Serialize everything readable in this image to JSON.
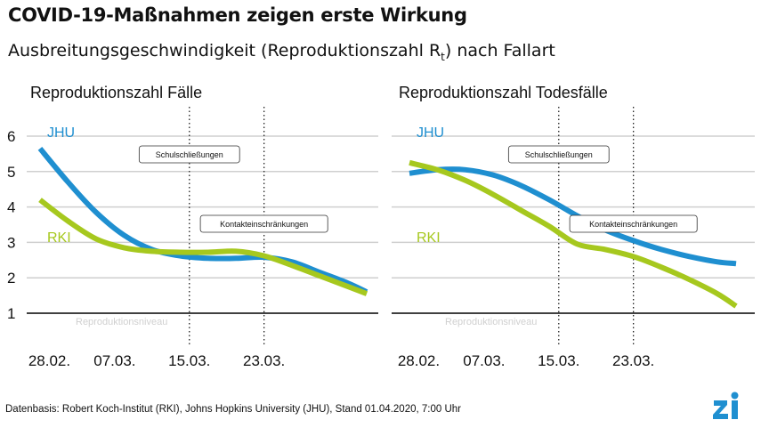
{
  "header": {
    "title": "COVID-19-Maßnahmen zeigen erste Wirkung",
    "subtitle_main": "Ausbreitungsgeschwindigkeit (Reproduktionszahl R",
    "subtitle_sub": "t",
    "subtitle_end": ") nach Fallart"
  },
  "footer": {
    "source": "Datenbasis: Robert Koch-Institut (RKI), Johns Hopkins University (JHU), Stand 01.04.2020, 7:00 Uhr"
  },
  "logo": {
    "text": "Zi",
    "color": "#1f8fd0"
  },
  "colors": {
    "JHU": "#1f8fd0",
    "RKI": "#a6c81e",
    "grid": "#cfcfcf",
    "baseline": "#000000"
  },
  "chart_data": [
    {
      "type": "line",
      "title": "Reproduktionszahl Fälle",
      "yticks": [
        "1",
        "2",
        "3",
        "4",
        "5",
        "6"
      ],
      "ylim": [
        1,
        6
      ],
      "xlim": [
        0,
        35
      ],
      "xtick_values": [
        1,
        8,
        16,
        24
      ],
      "xtick_labels": [
        "28.02.",
        "07.03.",
        "15.03.",
        "23.03."
      ],
      "baseline_label": "Reproduktionsniveau",
      "events": [
        {
          "x": 16,
          "label": "Schulschließungen"
        },
        {
          "x": 24,
          "label": "Kontakteinschränkungen"
        }
      ],
      "series": [
        {
          "name": "JHU",
          "x": [
            0,
            3,
            6,
            9,
            12,
            15,
            18,
            21,
            24,
            27,
            30,
            33,
            35
          ],
          "y": [
            5.65,
            4.7,
            3.85,
            3.2,
            2.8,
            2.62,
            2.55,
            2.55,
            2.58,
            2.45,
            2.15,
            1.85,
            1.6
          ]
        },
        {
          "name": "RKI",
          "x": [
            0,
            3,
            6,
            9,
            12,
            15,
            18,
            21,
            24,
            27,
            30,
            33,
            35
          ],
          "y": [
            4.2,
            3.6,
            3.1,
            2.85,
            2.75,
            2.72,
            2.72,
            2.75,
            2.62,
            2.35,
            2.05,
            1.75,
            1.55
          ]
        }
      ]
    },
    {
      "type": "line",
      "title": "Reproduktionszahl Todesfälle",
      "yticks": [],
      "ylim": [
        1,
        6
      ],
      "xlim": [
        0,
        35
      ],
      "xtick_values": [
        1,
        8,
        16,
        24
      ],
      "xtick_labels": [
        "28.02.",
        "07.03.",
        "15.03.",
        "23.03."
      ],
      "baseline_label": "Reproduktionsniveau",
      "events": [
        {
          "x": 16,
          "label": "Schulschließungen"
        },
        {
          "x": 24,
          "label": "Kontakteinschränkungen"
        }
      ],
      "series": [
        {
          "name": "JHU",
          "x": [
            0,
            3,
            6,
            9,
            12,
            15,
            18,
            21,
            24,
            27,
            30,
            33,
            35
          ],
          "y": [
            4.95,
            5.05,
            5.05,
            4.9,
            4.6,
            4.2,
            3.75,
            3.35,
            3.05,
            2.8,
            2.6,
            2.45,
            2.4
          ]
        },
        {
          "name": "RKI",
          "x": [
            0,
            3,
            6,
            9,
            12,
            15,
            18,
            21,
            24,
            27,
            30,
            33,
            35
          ],
          "y": [
            5.25,
            5.05,
            4.75,
            4.35,
            3.9,
            3.45,
            2.95,
            2.8,
            2.6,
            2.3,
            1.95,
            1.55,
            1.2
          ]
        }
      ]
    }
  ]
}
